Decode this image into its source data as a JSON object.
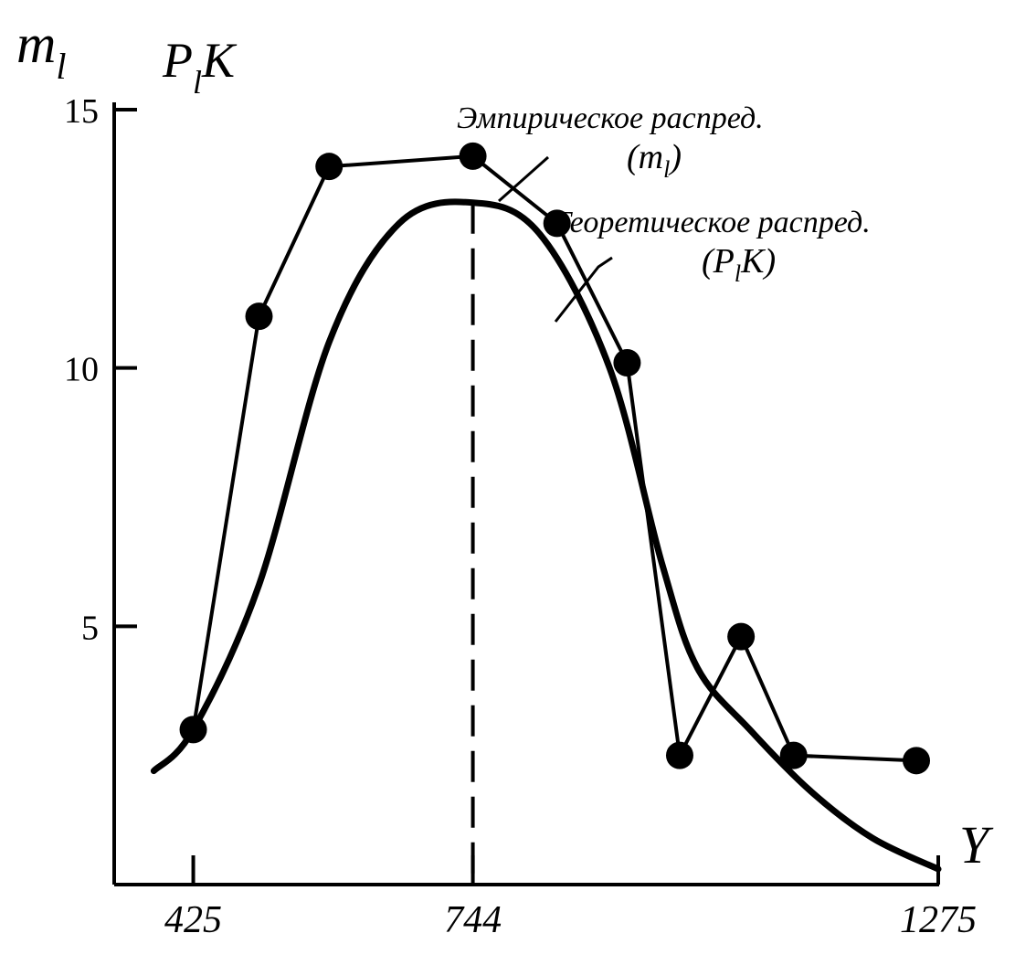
{
  "chart_data": {
    "type": "line",
    "ylabel_left": "m",
    "ylabel_left_sub": "l",
    "ylabel_right_main": "P",
    "ylabel_right_sub": "l",
    "ylabel_right_suffix": "K",
    "xlabel": "Y",
    "ylim": [
      0,
      15
    ],
    "xlim": [
      340,
      1275
    ],
    "x_ticks": [
      425,
      744,
      1275
    ],
    "x_tick_labels": [
      "425",
      "744",
      "1275"
    ],
    "y_ticks": [
      5,
      10,
      15
    ],
    "y_tick_labels": [
      "5",
      "10",
      "15"
    ],
    "grid": false,
    "legend": "top-right",
    "mean_line_x": 744,
    "series": [
      {
        "name": "Эмпирическое распред.",
        "label_symbol": "m",
        "label_symbol_sub": "l",
        "style": "markers-and-lines",
        "x": [
          425,
          500,
          580,
          744,
          840,
          920,
          980,
          1050,
          1110,
          1250
        ],
        "y": [
          3.0,
          11.0,
          13.9,
          14.1,
          12.8,
          10.1,
          2.5,
          4.8,
          2.5,
          2.4
        ]
      },
      {
        "name": "Теоретическое распред.",
        "label_symbol": "P",
        "label_symbol_sub": "l",
        "label_symbol_suffix": "K",
        "style": "smooth-curve",
        "x": [
          380,
          425,
          500,
          580,
          660,
          744,
          820,
          900,
          960,
          1000,
          1060,
          1130,
          1200,
          1275
        ],
        "y": [
          2.2,
          3.0,
          5.8,
          10.5,
          12.8,
          13.2,
          12.6,
          10.0,
          6.2,
          4.2,
          3.0,
          1.8,
          0.9,
          0.3
        ]
      }
    ]
  }
}
